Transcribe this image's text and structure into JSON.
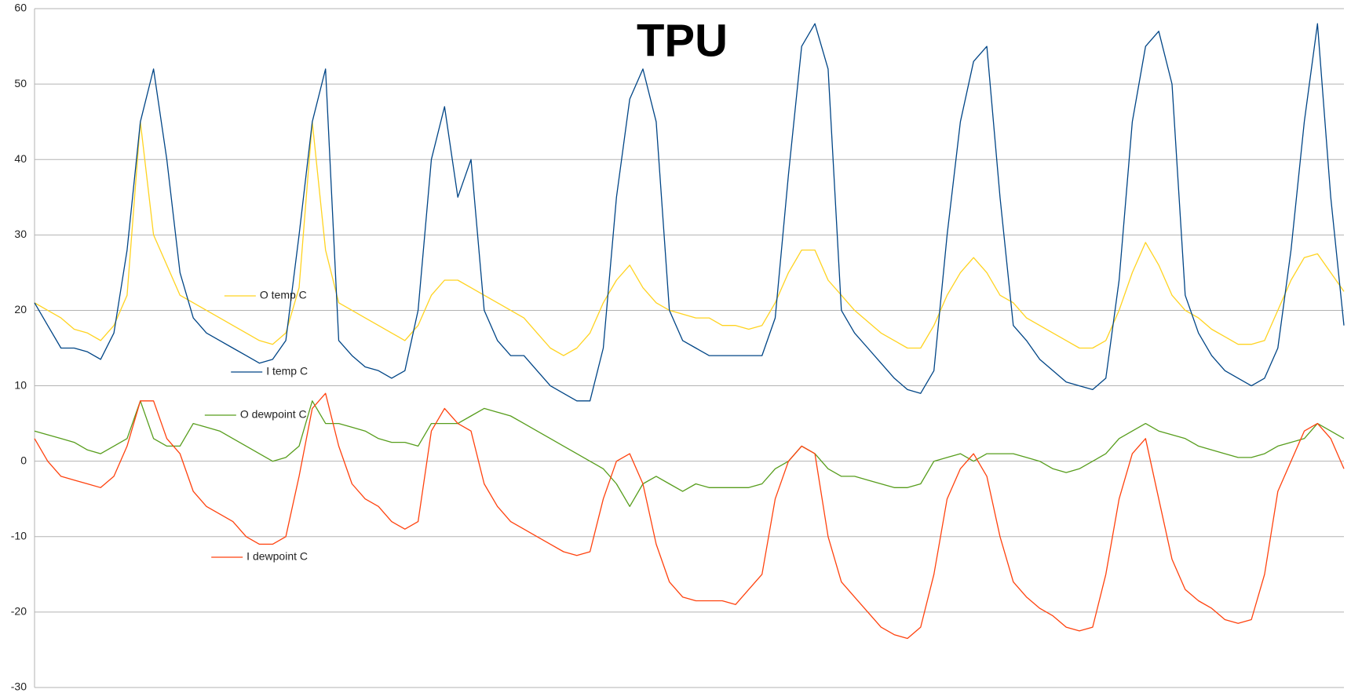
{
  "chart_data": {
    "type": "line",
    "title": "TPU",
    "ylim": [
      -30,
      60
    ],
    "yticks": [
      -30,
      -20,
      -10,
      0,
      10,
      20,
      30,
      40,
      50,
      60
    ],
    "grid": true,
    "series": [
      {
        "name": "O temp C",
        "color": "#ffd320",
        "values": [
          21,
          20,
          19,
          17.5,
          17,
          16,
          18,
          22,
          45,
          30,
          26,
          22,
          21,
          20,
          19,
          18,
          17,
          16,
          15.5,
          17,
          23,
          45,
          28,
          21,
          20,
          19,
          18,
          17,
          16,
          18,
          22,
          24,
          24,
          23,
          22,
          21,
          20,
          19,
          17,
          15,
          14,
          15,
          17,
          21,
          24,
          26,
          23,
          21,
          20,
          19.5,
          19,
          19,
          18,
          18,
          17.5,
          18,
          21,
          25,
          28,
          28,
          24,
          22,
          20,
          18.5,
          17,
          16,
          15,
          15,
          18,
          22,
          25,
          27,
          25,
          22,
          21,
          19,
          18,
          17,
          16,
          15,
          15,
          16,
          20,
          25,
          29,
          26,
          22,
          20,
          19,
          17.5,
          16.5,
          15.5,
          15.5,
          16,
          20,
          24,
          27,
          27.5,
          25,
          22.5
        ]
      },
      {
        "name": "I temp C",
        "color": "#004586",
        "values": [
          21,
          18,
          15,
          15,
          14.5,
          13.5,
          17,
          28,
          45,
          52,
          40,
          25,
          19,
          17,
          16,
          15,
          14,
          13,
          13.5,
          16,
          30,
          45,
          52,
          16,
          14,
          12.5,
          12,
          11,
          12,
          20,
          40,
          47,
          35,
          40,
          20,
          16,
          14,
          14,
          12,
          10,
          9,
          8,
          8,
          15,
          35,
          48,
          52,
          45,
          20,
          16,
          15,
          14,
          14,
          14,
          14,
          14,
          19,
          38,
          55,
          58,
          52,
          20,
          17,
          15,
          13,
          11,
          9.5,
          9,
          12,
          30,
          45,
          53,
          55,
          35,
          18,
          16,
          13.5,
          12,
          10.5,
          10,
          9.5,
          11,
          24,
          45,
          55,
          57,
          50,
          22,
          17,
          14,
          12,
          11,
          10,
          11,
          15,
          28,
          45,
          58,
          35,
          18
        ]
      },
      {
        "name": "O dewpoint C",
        "color": "#579d1c",
        "values": [
          4,
          3.5,
          3,
          2.5,
          1.5,
          1,
          2,
          3,
          8,
          3,
          2,
          2,
          5,
          4.5,
          4,
          3,
          2,
          1,
          0,
          0.5,
          2,
          8,
          5,
          5,
          4.5,
          4,
          3,
          2.5,
          2.5,
          2,
          5,
          5,
          5,
          6,
          7,
          6.5,
          6,
          5,
          4,
          3,
          2,
          1,
          0,
          -1,
          -3,
          -6,
          -3,
          -2,
          -3,
          -4,
          -3,
          -3.5,
          -3.5,
          -3.5,
          -3.5,
          -3,
          -1,
          0,
          2,
          1,
          -1,
          -2,
          -2,
          -2.5,
          -3,
          -3.5,
          -3.5,
          -3,
          0,
          0.5,
          1,
          0,
          1,
          1,
          1,
          0.5,
          0,
          -1,
          -1.5,
          -1,
          0,
          1,
          3,
          4,
          5,
          4,
          3.5,
          3,
          2,
          1.5,
          1,
          0.5,
          0.5,
          1,
          2,
          2.5,
          3,
          5,
          4,
          3
        ]
      },
      {
        "name": "I dewpoint C",
        "color": "#ff420e",
        "values": [
          3,
          0,
          -2,
          -2.5,
          -3,
          -3.5,
          -2,
          2,
          8,
          8,
          3,
          1,
          -4,
          -6,
          -7,
          -8,
          -10,
          -11,
          -11,
          -10,
          -2,
          7,
          9,
          2,
          -3,
          -5,
          -6,
          -8,
          -9,
          -8,
          4,
          7,
          5,
          4,
          -3,
          -6,
          -8,
          -9,
          -10,
          -11,
          -12,
          -12.5,
          -12,
          -5,
          0,
          1,
          -3,
          -11,
          -16,
          -18,
          -18.5,
          -18.5,
          -18.5,
          -19,
          -17,
          -15,
          -5,
          0,
          2,
          1,
          -10,
          -16,
          -18,
          -20,
          -22,
          -23,
          -23.5,
          -22,
          -15,
          -5,
          -1,
          1,
          -2,
          -10,
          -16,
          -18,
          -19.5,
          -20.5,
          -22,
          -22.5,
          -22,
          -15,
          -5,
          1,
          3,
          -5,
          -13,
          -17,
          -18.5,
          -19.5,
          -21,
          -21.5,
          -21,
          -15,
          -4,
          0,
          4,
          5,
          3,
          -1
        ]
      }
    ]
  }
}
